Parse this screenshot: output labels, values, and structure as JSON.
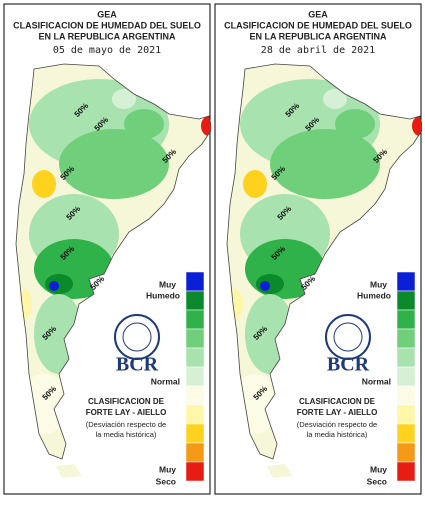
{
  "panels": [
    {
      "title_lines": [
        "GEA",
        "CLASIFICACION DE HUMEDAD DEL SUELO",
        "EN LA REPUBLICA ARGENTINA"
      ],
      "date": "05 de mayo de 2021",
      "contour_labels": [
        "50%",
        "50%",
        "50%",
        "50%",
        "50%",
        "50%",
        "50%",
        "50%",
        "50%"
      ]
    },
    {
      "title_lines": [
        "GEA",
        "CLASIFICACION DE HUMEDAD DEL SUELO",
        "EN LA REPUBLICA ARGENTINA"
      ],
      "date": "28 de abril de 2021",
      "contour_labels": [
        "50%",
        "50%",
        "50%",
        "50%",
        "50%",
        "50%",
        "50%",
        "50%",
        "50%"
      ]
    }
  ],
  "legend": {
    "colors": [
      "#0a20d8",
      "#0a8a2a",
      "#2fb24a",
      "#6fcf7a",
      "#a8e2ae",
      "#d6f0d6",
      "#fbfbe6",
      "#fff6a8",
      "#ffd21e",
      "#f59a16",
      "#e81c12"
    ],
    "top_label": [
      "Muy",
      "Humedo"
    ],
    "middle_label": "Normal",
    "bottom_label": [
      "Muy",
      "Seco"
    ]
  },
  "logo": {
    "name": "BCR"
  },
  "method": {
    "lines": [
      "CLASIFICACION DE",
      "FORTE LAY - AIELLO"
    ],
    "note_lines": [
      "(Desviación respecto de",
      "la media histórica)"
    ]
  }
}
